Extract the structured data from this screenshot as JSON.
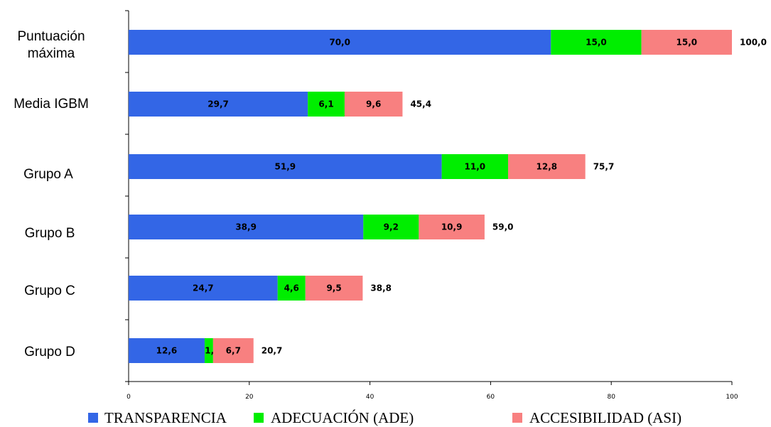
{
  "chart_data": {
    "type": "bar",
    "orientation": "horizontal",
    "stacked": true,
    "categories": [
      "Puntuación máxima",
      "Media IGBM",
      "Grupo A",
      "Grupo B",
      "Grupo C",
      "Grupo D"
    ],
    "series": [
      {
        "name": "TRANSPARENCIA",
        "color": "#3366E6",
        "values": [
          70.0,
          29.7,
          51.9,
          38.9,
          24.7,
          12.6
        ],
        "labels": [
          "70,0",
          "29,7",
          "51,9",
          "38,9",
          "24,7",
          "12,6"
        ]
      },
      {
        "name": "ADECUACIÓN (ADE)",
        "color": "#00EE00",
        "values": [
          15.0,
          6.1,
          11.0,
          9.2,
          4.6,
          1.4
        ],
        "labels": [
          "15,0",
          "6,1",
          "11,0",
          "9,2",
          "4,6",
          "1,4"
        ]
      },
      {
        "name": "ACCESIBILIDAD (ASI)",
        "color": "#F88080",
        "values": [
          15.0,
          9.6,
          12.8,
          10.9,
          9.5,
          6.7
        ],
        "labels": [
          "15,0",
          "9,6",
          "12,8",
          "10,9",
          "9,5",
          "6,7"
        ]
      }
    ],
    "totals": [
      "100,0",
      "45,4",
      "75,7",
      "59,0",
      "38,8",
      "20,7"
    ],
    "xlim": [
      0,
      100
    ],
    "xticks": [
      0,
      20,
      40,
      60,
      80,
      100
    ],
    "grid": false,
    "legend_position": "bottom"
  }
}
